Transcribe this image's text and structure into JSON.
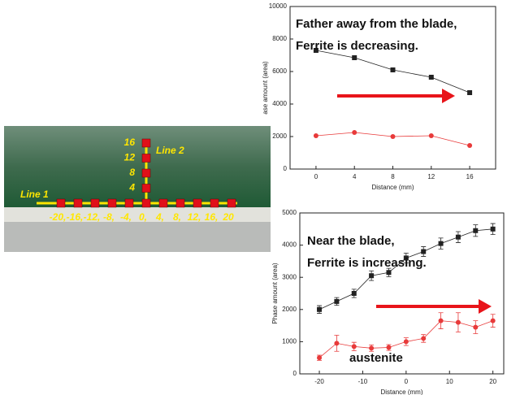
{
  "photo": {
    "line1": "Line 1",
    "line2": "Line 2",
    "horizontal_labels": [
      "-20,",
      "-16,",
      "-12,",
      "-8,",
      "-4,",
      "0,",
      "4,",
      "8,",
      "12,",
      "16,",
      "20"
    ],
    "vertical_labels": [
      "16",
      "12",
      "8",
      "4"
    ]
  },
  "chart_data": [
    {
      "type": "line",
      "x_label": "Distance (mm)",
      "y_label": "ase amount (area)",
      "annotations": [
        "Father away from the blade,",
        "Ferrite is decreasing."
      ],
      "x": [
        0,
        4,
        8,
        12,
        16
      ],
      "xlim": [
        -2.7,
        18.7
      ],
      "xticks": [
        0,
        4,
        8,
        12,
        16
      ],
      "ylim": [
        0,
        10000
      ],
      "yticks": [
        0,
        2000,
        4000,
        6000,
        8000,
        10000
      ],
      "series": [
        {
          "color": "#222222",
          "marker": "square",
          "values": [
            7300,
            6850,
            6100,
            5650,
            4700
          ]
        },
        {
          "color": "#e83a3a",
          "marker": "circle",
          "values": [
            2050,
            2250,
            2000,
            2050,
            1450
          ]
        }
      ]
    },
    {
      "type": "line",
      "x_label": "Distance (mm)",
      "y_label": "Phase amount (area)",
      "annotations": [
        "Near the blade,",
        "Ferrite is increasing.",
        "austenite"
      ],
      "x": [
        -20,
        -16,
        -12,
        -8,
        -4,
        0,
        4,
        8,
        12,
        16,
        20
      ],
      "xlim": [
        -24.5,
        22.5
      ],
      "xticks": [
        -20,
        -10,
        0,
        10,
        20
      ],
      "ylim": [
        0,
        5000
      ],
      "yticks": [
        0,
        1000,
        2000,
        3000,
        4000,
        5000
      ],
      "series": [
        {
          "color": "#222222",
          "marker": "square",
          "values": [
            2000,
            2250,
            2500,
            3050,
            3150,
            3600,
            3800,
            4050,
            4250,
            4450,
            4500
          ],
          "errors": [
            120,
            120,
            130,
            150,
            130,
            150,
            150,
            170,
            170,
            180,
            170
          ]
        },
        {
          "color": "#e83a3a",
          "marker": "circle",
          "values": [
            500,
            950,
            850,
            800,
            820,
            1000,
            1100,
            1650,
            1600,
            1450,
            1650
          ],
          "errors": [
            80,
            250,
            130,
            100,
            90,
            120,
            120,
            250,
            300,
            200,
            200
          ]
        }
      ]
    }
  ]
}
